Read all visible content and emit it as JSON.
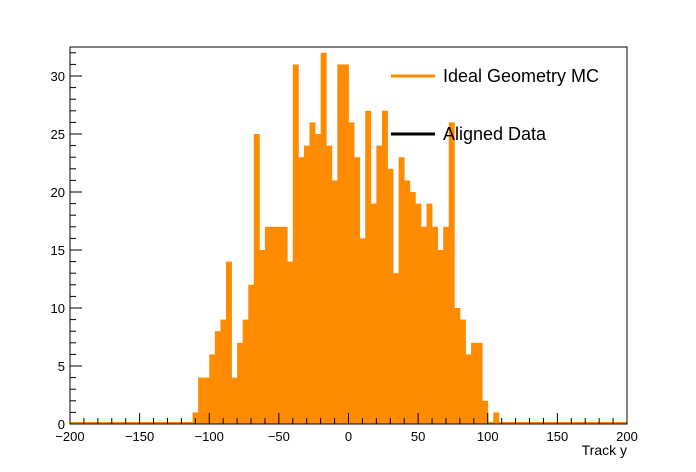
{
  "chart_data": {
    "type": "bar",
    "title": "",
    "xlabel": "Track y",
    "ylabel": "",
    "xlim": [
      -200,
      200
    ],
    "ylim": [
      0,
      32.5
    ],
    "bin_width": 4,
    "x_ticks": [
      -200,
      -150,
      -100,
      -50,
      0,
      50,
      100,
      150,
      200
    ],
    "x_tick_labels": [
      "−200",
      "−150",
      "−100",
      "−50",
      "0",
      "50",
      "100",
      "150",
      "200"
    ],
    "y_ticks": [
      0,
      5,
      10,
      15,
      20,
      25,
      30
    ],
    "y_tick_labels": [
      "0",
      "5",
      "10",
      "15",
      "20",
      "25",
      "30"
    ],
    "grid": false,
    "legend_position": "top-right",
    "series": [
      {
        "name": "Ideal Geometry MC",
        "color": "#ff8c00",
        "bin_centers": [
          -110,
          -106,
          -102,
          -98,
          -94,
          -90,
          -86,
          -82,
          -78,
          -74,
          -70,
          -66,
          -62,
          -58,
          -54,
          -50,
          -46,
          -42,
          -38,
          -34,
          -30,
          -26,
          -22,
          -18,
          -14,
          -10,
          -6,
          -2,
          2,
          6,
          10,
          14,
          18,
          22,
          26,
          30,
          34,
          38,
          42,
          46,
          50,
          54,
          58,
          62,
          66,
          70,
          74,
          78,
          82,
          86,
          90,
          94,
          98,
          102,
          106,
          110,
          114
        ],
        "values": [
          1,
          4,
          4,
          6,
          8,
          9,
          14,
          4,
          7,
          9,
          12,
          25,
          15,
          17,
          17,
          17,
          17,
          14,
          31,
          23,
          24,
          26,
          25,
          32,
          24,
          21,
          31,
          31,
          26,
          23,
          16,
          27,
          19,
          24,
          27,
          22,
          13,
          23,
          21,
          20,
          19,
          17,
          19,
          17,
          15,
          17,
          26,
          10,
          9,
          6,
          7,
          7,
          2,
          0,
          1,
          0,
          0
        ]
      },
      {
        "name": "Aligned Data",
        "color": "#000000",
        "values": []
      }
    ]
  }
}
